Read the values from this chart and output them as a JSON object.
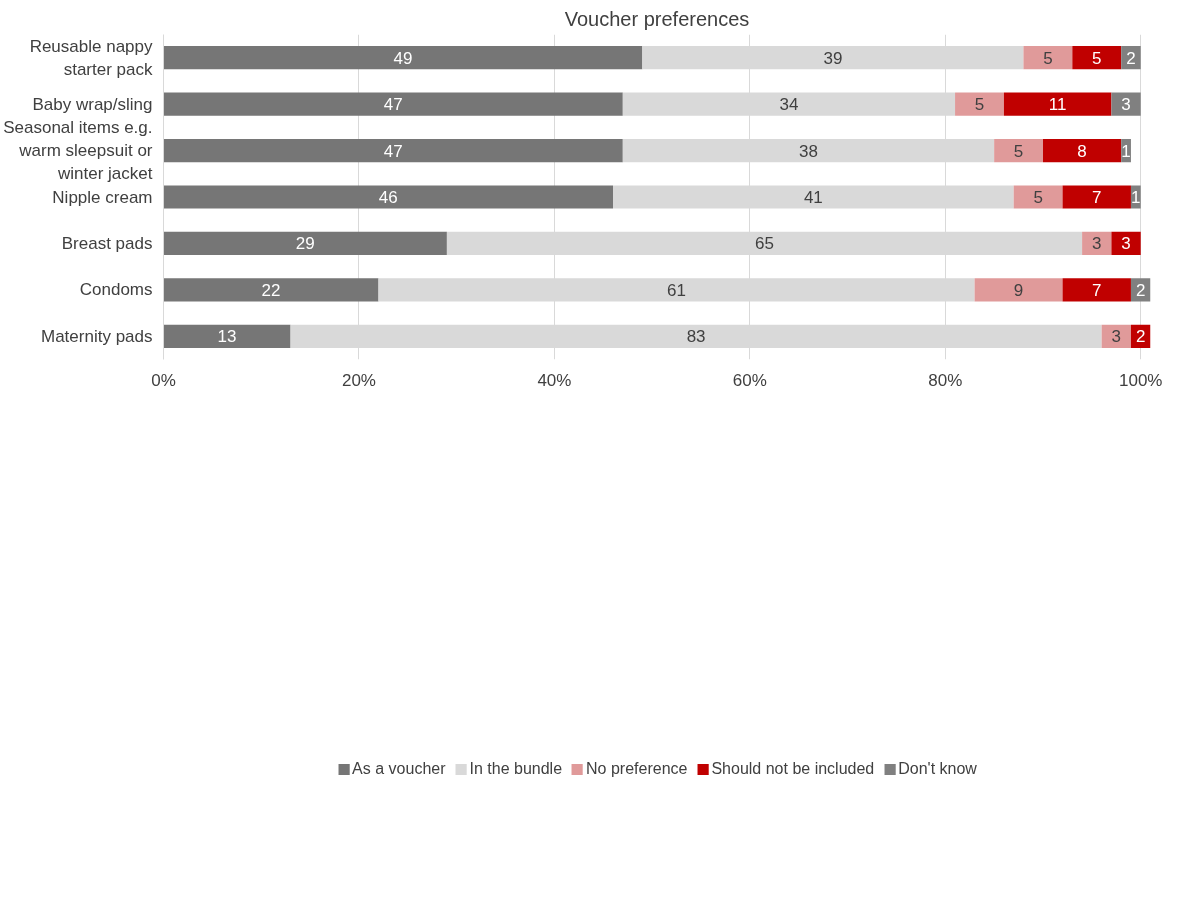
{
  "chart_data": {
    "type": "bar",
    "orientation": "horizontal",
    "stacked": true,
    "title": "Voucher preferences",
    "categories": [
      "Reusable nappy starter pack",
      "Baby wrap/sling",
      "Seasonal items e.g. warm sleepsuit or winter jacket",
      "Nipple cream",
      "Breast pads",
      "Condoms",
      "Maternity pads"
    ],
    "series": [
      {
        "name": "As a voucher",
        "color": "#767676",
        "values": [
          49,
          47,
          47,
          46,
          29,
          22,
          13
        ]
      },
      {
        "name": "In the bundle",
        "color": "#d9d9d9",
        "values": [
          39,
          34,
          38,
          41,
          65,
          61,
          83
        ]
      },
      {
        "name": "No preference",
        "color": "#e09a9a",
        "values": [
          5,
          5,
          5,
          5,
          3,
          9,
          3
        ]
      },
      {
        "name": "Should not be included",
        "color": "#c00000",
        "values": [
          5,
          11,
          8,
          7,
          3,
          7,
          2
        ]
      },
      {
        "name": "Don't know",
        "color": "#808080",
        "values": [
          2,
          3,
          1,
          1,
          null,
          2,
          null
        ]
      }
    ],
    "xlim": [
      0,
      101
    ],
    "xticks": [
      {
        "value": 0,
        "label": "0%"
      },
      {
        "value": 20,
        "label": "20%"
      },
      {
        "value": 40,
        "label": "40%"
      },
      {
        "value": 60,
        "label": "60%"
      },
      {
        "value": 80,
        "label": "80%"
      },
      {
        "value": 100,
        "label": "100%"
      }
    ],
    "grid": "x",
    "legend": "bottom",
    "data_labels": true
  }
}
